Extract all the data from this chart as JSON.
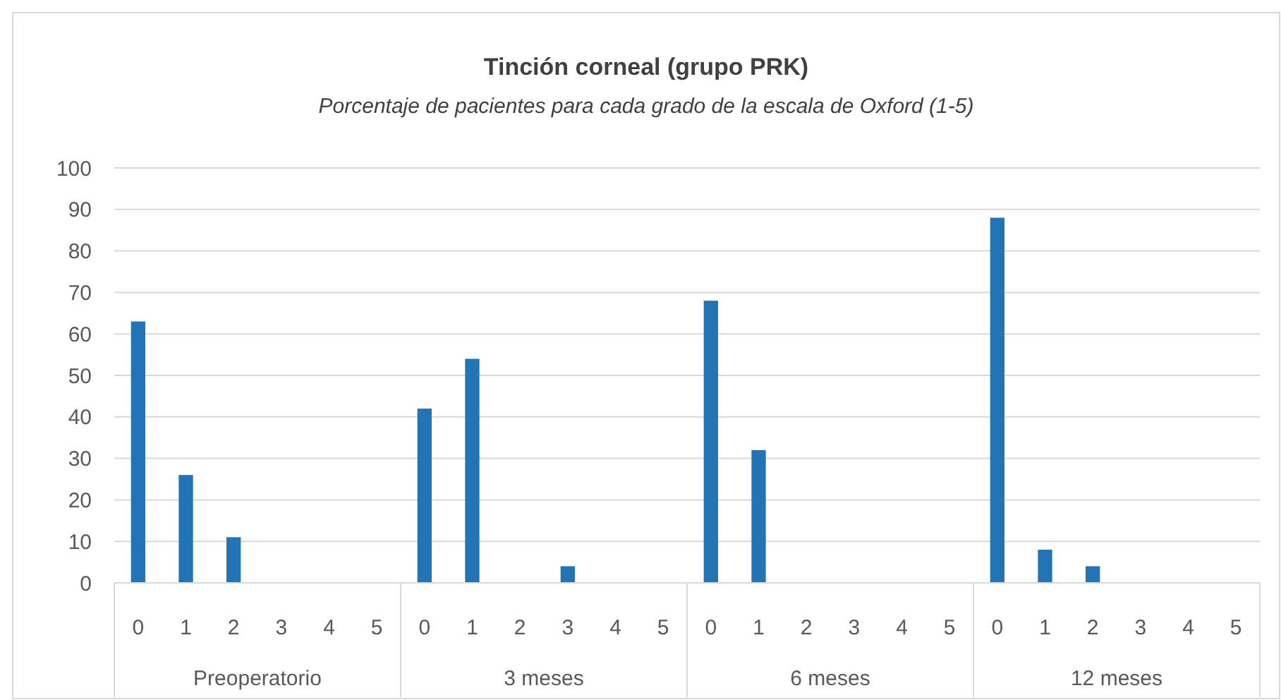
{
  "chart_data": {
    "type": "bar",
    "title": "Tinción corneal (grupo PRK)",
    "subtitle": "Porcentaje de pacientes para cada grado de la escala de Oxford (1-5)",
    "categories": [
      "0",
      "1",
      "2",
      "3",
      "4",
      "5",
      "0",
      "1",
      "2",
      "3",
      "4",
      "5",
      "0",
      "1",
      "2",
      "3",
      "4",
      "5",
      "0",
      "1",
      "2",
      "3",
      "4",
      "5"
    ],
    "values": [
      63,
      26,
      11,
      0,
      0,
      0,
      42,
      54,
      0,
      4,
      0,
      0,
      68,
      32,
      0,
      0,
      0,
      0,
      88,
      8,
      4,
      0,
      0,
      0
    ],
    "color": "#2274b5",
    "annotations": [
      "Preoperatorio",
      "3 meses",
      "6 meses",
      "12 meses"
    ],
    "ylim": [
      0,
      100
    ],
    "yticks": [
      0,
      10,
      20,
      30,
      40,
      50,
      60,
      70,
      80,
      90,
      100
    ],
    "grid": "y"
  }
}
